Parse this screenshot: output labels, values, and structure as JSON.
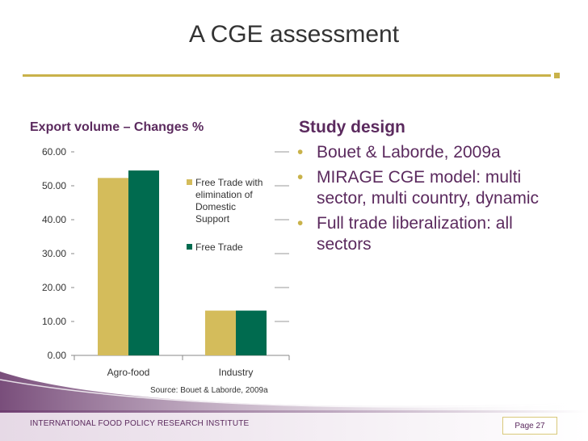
{
  "slide": {
    "title": "A CGE assessment",
    "chart_heading": "Export volume – Changes %",
    "section_heading": "Study design",
    "bullets": [
      "Bouet & Laborde, 2009a",
      "MIRAGE CGE model: multi sector, multi country, dynamic",
      "Full trade liberalization: all sectors"
    ],
    "source_note": "Source: Bouet & Laborde, 2009a",
    "footer": "INTERNATIONAL FOOD POLICY RESEARCH INSTITUTE",
    "page": "Page 27"
  },
  "colors": {
    "accent_gold": "#c9b24a",
    "heading_purple": "#5b2a5e",
    "series_1": "#d4bc5b",
    "series_2": "#006b4f",
    "footer_purple": "#6a3a6c"
  },
  "chart_data": {
    "type": "bar",
    "categories": [
      "Agro-food",
      "Industry"
    ],
    "series": [
      {
        "name": "Free Trade with elimination of Domestic Support",
        "values": [
          52.3,
          13.2
        ]
      },
      {
        "name": "Free Trade",
        "values": [
          54.5,
          13.2
        ]
      }
    ],
    "y_ticks": [
      "60.00",
      "50.00",
      "40.00",
      "30.00",
      "20.00",
      "10.00",
      "0.00"
    ],
    "ylim": [
      0,
      60
    ],
    "legend_lines": [
      [
        "Free Trade with",
        "elimination of",
        "Domestic",
        "Support"
      ],
      [
        "Free Trade"
      ]
    ],
    "legend_position": "right",
    "grid": true
  }
}
